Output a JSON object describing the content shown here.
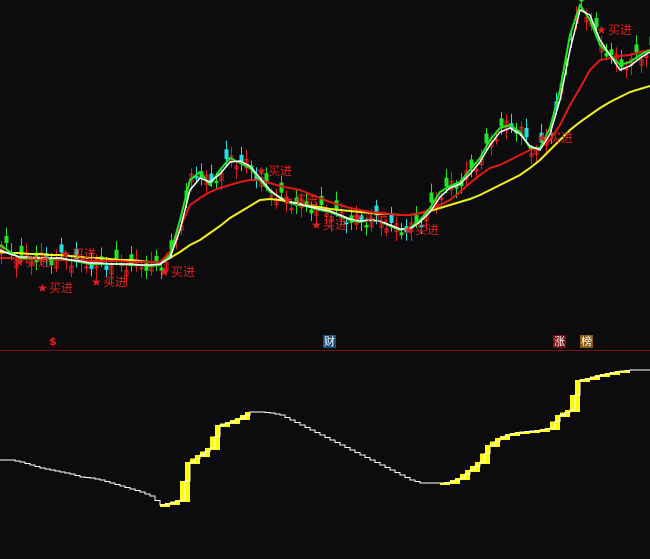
{
  "chart_data": [
    {
      "type": "line",
      "panel": "price",
      "grid": false,
      "x_unit": "bar index",
      "x": [
        0,
        1,
        2,
        3,
        4,
        5,
        6,
        7,
        8,
        9,
        10,
        11,
        12,
        13,
        14,
        15,
        16,
        17,
        18,
        19,
        20,
        21,
        22,
        23,
        24,
        25,
        26,
        27,
        28,
        29,
        30,
        31,
        32,
        33,
        34,
        35,
        36,
        37,
        38,
        39,
        40,
        41,
        42,
        43,
        44,
        45,
        46,
        47,
        48,
        49,
        50,
        51,
        52,
        53,
        54,
        55,
        56,
        57,
        58,
        59,
        60,
        61,
        62,
        63,
        64,
        65
      ],
      "series": [
        {
          "key": "ma_white",
          "color": "#ffffff",
          "values": [
            5.0,
            4.6,
            4.3,
            4.3,
            4.2,
            4.2,
            4.2,
            4.0,
            3.9,
            3.7,
            3.7,
            3.6,
            3.6,
            3.6,
            3.5,
            3.5,
            3.6,
            4.2,
            7.0,
            11.0,
            12.2,
            11.8,
            12.6,
            13.8,
            13.9,
            13.4,
            12.2,
            11.0,
            10.2,
            9.8,
            9.6,
            9.3,
            9.1,
            8.9,
            8.5,
            8.1,
            7.9,
            8.0,
            7.9,
            7.5,
            7.1,
            7.1,
            7.8,
            8.8,
            10.3,
            11.2,
            11.6,
            12.6,
            13.8,
            15.5,
            16.8,
            17.2,
            16.6,
            15.4,
            15.0,
            16.6,
            20.0,
            25.0,
            29.0,
            28.5,
            26.0,
            24.5,
            23.0,
            23.4,
            24.2,
            24.8
          ]
        },
        {
          "key": "ma_green",
          "color": "#22e622",
          "values": [
            5.5,
            4.8,
            4.2,
            4.2,
            4.2,
            4.1,
            4.2,
            4.0,
            3.8,
            3.6,
            3.6,
            3.6,
            3.6,
            3.5,
            3.5,
            3.4,
            3.5,
            4.5,
            8.0,
            12.0,
            12.8,
            11.5,
            13.0,
            14.2,
            13.7,
            13.2,
            12.0,
            10.8,
            10.3,
            9.7,
            9.5,
            9.3,
            9.0,
            8.8,
            8.4,
            8.0,
            7.8,
            8.0,
            7.9,
            7.4,
            7.0,
            7.2,
            8.0,
            9.2,
            10.8,
            11.4,
            11.8,
            13.0,
            14.2,
            16.0,
            17.2,
            17.5,
            16.8,
            15.2,
            15.2,
            17.2,
            21.0,
            26.5,
            29.5,
            28.0,
            25.5,
            24.5,
            23.5,
            23.8,
            24.5,
            25.0
          ]
        },
        {
          "key": "ma_red",
          "color": "#e01818",
          "values": [
            4.2,
            4.2,
            4.1,
            4.1,
            4.1,
            4.1,
            4.0,
            4.0,
            4.0,
            3.9,
            3.9,
            3.9,
            3.9,
            3.8,
            3.8,
            3.8,
            3.8,
            4.8,
            7.2,
            9.5,
            10.2,
            10.8,
            11.2,
            11.5,
            11.8,
            12.0,
            12.0,
            11.7,
            11.4,
            11.2,
            11.0,
            10.6,
            10.2,
            9.8,
            9.5,
            9.2,
            9.0,
            8.8,
            8.7,
            8.6,
            8.5,
            8.5,
            8.7,
            9.0,
            9.5,
            10.0,
            10.8,
            11.7,
            12.5,
            13.2,
            13.5,
            14.0,
            14.5,
            15.0,
            15.2,
            16.0,
            17.5,
            19.5,
            21.2,
            23.0,
            24.0,
            24.2,
            24.4,
            24.5,
            24.8,
            25.0
          ]
        },
        {
          "key": "ma_yellow",
          "color": "#f0f020",
          "values": [
            4.8,
            4.7,
            4.7,
            4.6,
            4.6,
            4.5,
            4.5,
            4.4,
            4.3,
            4.2,
            4.2,
            4.1,
            4.0,
            4.0,
            3.9,
            3.8,
            3.8,
            4.2,
            4.8,
            5.5,
            6.0,
            6.7,
            7.4,
            8.2,
            8.8,
            9.4,
            10.0,
            10.1,
            10.0,
            9.8,
            9.6,
            9.4,
            9.3,
            9.1,
            9.0,
            8.9,
            8.8,
            8.7,
            8.6,
            8.6,
            8.5,
            8.5,
            8.7,
            8.9,
            9.2,
            9.5,
            9.8,
            10.1,
            10.5,
            11.0,
            11.5,
            12.0,
            12.5,
            13.2,
            14.0,
            15.0,
            16.0,
            17.0,
            17.8,
            18.5,
            19.2,
            19.8,
            20.3,
            20.8,
            21.1,
            21.4
          ]
        }
      ],
      "candle_colors": {
        "up": "#e02020",
        "down": "#20e0e0",
        "down_alt": "#22e622"
      },
      "signals": {
        "label": "买进",
        "color": "#e02020",
        "points": [
          [
            2,
            3.8
          ],
          [
            4.3,
            4.2
          ],
          [
            6.6,
            4.6
          ],
          [
            9.7,
            3.3
          ],
          [
            16.5,
            2.8
          ],
          [
            26.2,
            12.9
          ],
          [
            28.8,
            10.0
          ],
          [
            31.7,
            9.0
          ],
          [
            35.8,
            8.3
          ],
          [
            40.9,
            7.0
          ],
          [
            54.3,
            16.2
          ],
          [
            60.2,
            27.0
          ]
        ]
      }
    },
    {
      "type": "line",
      "panel": "indicator",
      "style": "step",
      "grid": false,
      "line_color": "#ffffff",
      "rise_color": "#ffff00",
      "x": [
        0,
        1,
        2,
        3,
        4,
        5,
        6,
        7,
        8,
        9,
        10,
        11,
        12,
        13,
        14,
        15,
        16,
        17,
        18,
        19,
        20,
        21,
        22,
        23,
        24,
        25,
        26,
        27,
        28,
        29,
        30,
        31,
        32,
        33,
        34,
        35,
        36,
        37,
        38,
        39,
        40,
        41,
        42,
        43,
        44,
        45,
        46,
        47,
        48,
        49,
        50,
        51,
        52,
        53,
        54,
        55,
        56,
        57,
        58,
        59,
        60,
        61,
        62,
        63,
        64,
        65
      ],
      "values": [
        100,
        100,
        98,
        95,
        92,
        90,
        88,
        86,
        83,
        82,
        80,
        77,
        74,
        71,
        68,
        64,
        55,
        57,
        60,
        98,
        105,
        112,
        135,
        138,
        142,
        148,
        148,
        147,
        145,
        140,
        135,
        130,
        125,
        120,
        115,
        110,
        105,
        100,
        95,
        90,
        85,
        80,
        77,
        77,
        77,
        78,
        82,
        90,
        98,
        115,
        122,
        126,
        128,
        129,
        130,
        132,
        145,
        150,
        180,
        182,
        185,
        187,
        189,
        190,
        190,
        190
      ]
    }
  ],
  "event_markers": [
    {
      "label": "$",
      "fg": "#e02020",
      "bg": "transparent"
    },
    {
      "label": "财",
      "fg": "#ffffff",
      "bg": "#1d4f78"
    },
    {
      "label": "涨",
      "fg": "#ffffff",
      "bg": "#7a1010"
    },
    {
      "label": "榜",
      "fg": "#ffffff",
      "bg": "#8a5a10"
    }
  ],
  "divider_color": "#7a1010"
}
